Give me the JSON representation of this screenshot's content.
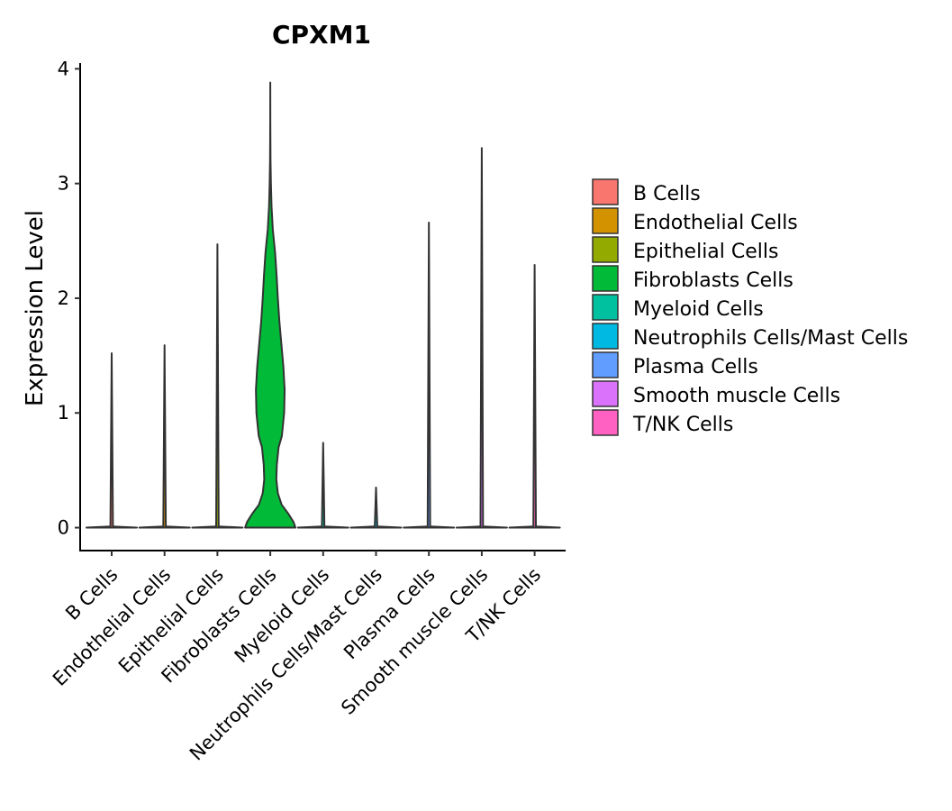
{
  "chart_data": {
    "type": "violin",
    "title": "CPXM1",
    "xlabel": "",
    "ylabel": "Expression Level",
    "ylim": [
      -0.2,
      4.05
    ],
    "yticks": [
      0,
      1,
      2,
      3,
      4
    ],
    "legend_position": "right",
    "categories": [
      "B Cells",
      "Endothelial Cells",
      "Epithelial Cells",
      "Fibroblasts Cells",
      "Myeloid Cells",
      "Neutrophils Cells/Mast Cells",
      "Plasma Cells",
      "Smooth muscle Cells",
      "T/NK Cells"
    ],
    "colors": [
      "#F8766D",
      "#D39200",
      "#93AA00",
      "#00BA38",
      "#00C19F",
      "#00B9E3",
      "#619CFF",
      "#DB72FB",
      "#FF61C3"
    ],
    "max_values": [
      1.52,
      1.59,
      2.47,
      3.88,
      0.74,
      0.35,
      2.66,
      3.31,
      2.29
    ],
    "density_profiles": [
      [
        [
          0,
          1.0
        ],
        [
          0.01,
          0.05
        ],
        [
          1.52,
          0.0
        ]
      ],
      [
        [
          0,
          1.0
        ],
        [
          0.01,
          0.05
        ],
        [
          1.59,
          0.0
        ]
      ],
      [
        [
          0,
          1.0
        ],
        [
          0.01,
          0.05
        ],
        [
          2.47,
          0.0
        ]
      ],
      [
        [
          0,
          1.0
        ],
        [
          0.05,
          0.92
        ],
        [
          0.12,
          0.72
        ],
        [
          0.2,
          0.45
        ],
        [
          0.3,
          0.3
        ],
        [
          0.42,
          0.24
        ],
        [
          0.55,
          0.26
        ],
        [
          0.7,
          0.33
        ],
        [
          0.8,
          0.46
        ],
        [
          1.0,
          0.55
        ],
        [
          1.2,
          0.57
        ],
        [
          1.4,
          0.52
        ],
        [
          1.6,
          0.44
        ],
        [
          1.8,
          0.36
        ],
        [
          2.0,
          0.3
        ],
        [
          2.2,
          0.25
        ],
        [
          2.4,
          0.19
        ],
        [
          2.6,
          0.1
        ],
        [
          2.8,
          0.05
        ],
        [
          3.0,
          0.025
        ],
        [
          3.2,
          0.01
        ],
        [
          3.5,
          0.003
        ],
        [
          3.88,
          0.0
        ]
      ],
      [
        [
          0,
          1.0
        ],
        [
          0.01,
          0.05
        ],
        [
          0.74,
          0.0
        ]
      ],
      [
        [
          0,
          1.0
        ],
        [
          0.01,
          0.05
        ],
        [
          0.35,
          0.0
        ]
      ],
      [
        [
          0,
          1.0
        ],
        [
          0.01,
          0.05
        ],
        [
          2.66,
          0.0
        ]
      ],
      [
        [
          0,
          1.0
        ],
        [
          0.01,
          0.05
        ],
        [
          3.31,
          0.0
        ]
      ],
      [
        [
          0,
          1.0
        ],
        [
          0.01,
          0.05
        ],
        [
          2.29,
          0.0
        ]
      ]
    ]
  }
}
